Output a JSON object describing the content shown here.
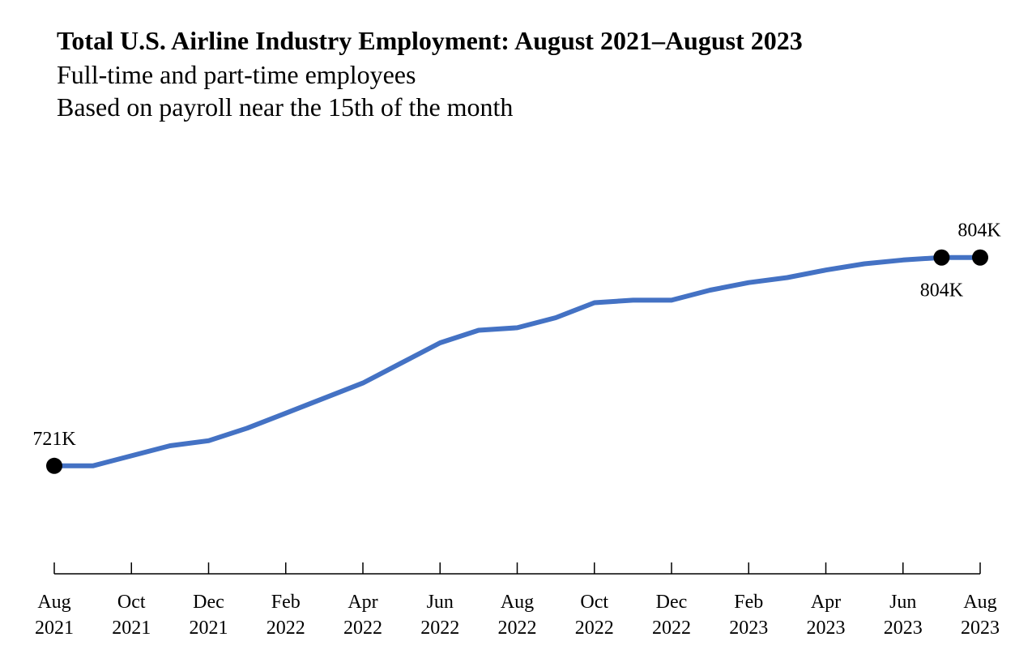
{
  "chart_data": {
    "type": "line",
    "title": "Total U.S. Airline Industry Employment: August 2021–August 2023",
    "subtitle_lines": [
      "Full-time and part-time employees",
      "Based on payroll near the 15th of the month"
    ],
    "x": [
      "2021-08",
      "2021-09",
      "2021-10",
      "2021-11",
      "2021-12",
      "2022-01",
      "2022-02",
      "2022-03",
      "2022-04",
      "2022-05",
      "2022-06",
      "2022-07",
      "2022-08",
      "2022-09",
      "2022-10",
      "2022-11",
      "2022-12",
      "2023-01",
      "2023-02",
      "2023-03",
      "2023-04",
      "2023-05",
      "2023-06",
      "2023-07",
      "2023-08"
    ],
    "series": [
      {
        "color": "#4472c4",
        "values": [
          721,
          721,
          725,
          729,
          731,
          736,
          742,
          748,
          754,
          762,
          770,
          775,
          776,
          780,
          786,
          787,
          787,
          791,
          794,
          796,
          799,
          801.5,
          803,
          804,
          804
        ]
      }
    ],
    "ylim": [
      678,
      842
    ],
    "tick_labels": [
      {
        "line1": "Aug",
        "line2": "2021"
      },
      {
        "line1": "Oct",
        "line2": "2021"
      },
      {
        "line1": "Dec",
        "line2": "2021"
      },
      {
        "line1": "Feb",
        "line2": "2022"
      },
      {
        "line1": "Apr",
        "line2": "2022"
      },
      {
        "line1": "Jun",
        "line2": "2022"
      },
      {
        "line1": "Aug",
        "line2": "2022"
      },
      {
        "line1": "Oct",
        "line2": "2022"
      },
      {
        "line1": "Dec",
        "line2": "2022"
      },
      {
        "line1": "Feb",
        "line2": "2023"
      },
      {
        "line1": "Apr",
        "line2": "2023"
      },
      {
        "line1": "Jun",
        "line2": "2023"
      },
      {
        "line1": "Aug",
        "line2": "2023"
      }
    ],
    "annotations": [
      {
        "index": 0,
        "text": "721K",
        "placement": "above"
      },
      {
        "index": 23,
        "text": "804K",
        "placement": "below"
      },
      {
        "index": 24,
        "text": "804K",
        "placement": "above"
      }
    ],
    "grid": false,
    "legend": "none"
  }
}
